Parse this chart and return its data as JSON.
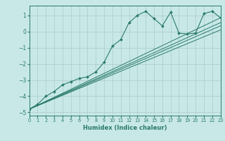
{
  "background_color": "#c8e8e8",
  "grid_color": "#b0d0d0",
  "line_color": "#2a7a6a",
  "marker_color": "#2a7a6a",
  "xlabel": "Humidex (Indice chaleur)",
  "xlim": [
    0,
    23
  ],
  "ylim": [
    -5.2,
    1.6
  ],
  "yticks": [
    -5,
    -4,
    -3,
    -2,
    -1,
    0,
    1
  ],
  "xticks": [
    0,
    1,
    2,
    3,
    4,
    5,
    6,
    7,
    8,
    9,
    10,
    11,
    12,
    13,
    14,
    15,
    16,
    17,
    18,
    19,
    20,
    21,
    22,
    23
  ],
  "series": [
    [
      0,
      -4.8
    ],
    [
      1,
      -4.5
    ],
    [
      2,
      -4.0
    ],
    [
      3,
      -3.7
    ],
    [
      4,
      -3.3
    ],
    [
      5,
      -3.1
    ],
    [
      6,
      -2.9
    ],
    [
      7,
      -2.8
    ],
    [
      8,
      -2.5
    ],
    [
      9,
      -1.9
    ],
    [
      10,
      -0.9
    ],
    [
      11,
      -0.5
    ],
    [
      12,
      0.55
    ],
    [
      13,
      1.0
    ],
    [
      14,
      1.25
    ],
    [
      15,
      0.8
    ],
    [
      16,
      0.35
    ],
    [
      17,
      1.2
    ],
    [
      18,
      -0.1
    ],
    [
      19,
      -0.15
    ],
    [
      20,
      -0.1
    ],
    [
      21,
      1.1
    ],
    [
      22,
      1.25
    ],
    [
      23,
      0.85
    ]
  ],
  "line_series": [
    [
      [
        0,
        -4.8
      ],
      [
        23,
        0.85
      ]
    ],
    [
      [
        0,
        -4.8
      ],
      [
        23,
        0.55
      ]
    ],
    [
      [
        0,
        -4.8
      ],
      [
        23,
        0.35
      ]
    ],
    [
      [
        0,
        -4.8
      ],
      [
        23,
        0.1
      ]
    ]
  ]
}
